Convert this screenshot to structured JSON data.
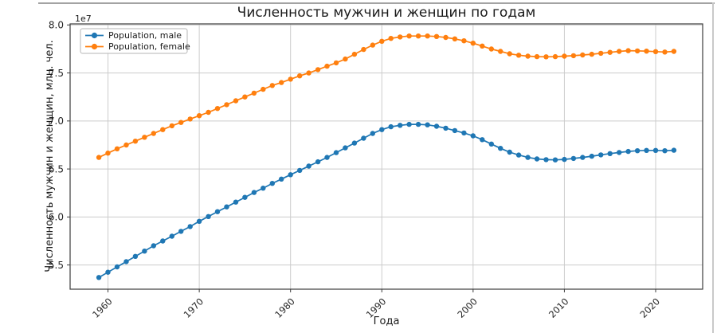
{
  "figure": {
    "background": "#ffffff",
    "frame_border_color": "#3c3c3c",
    "grid_color": "#cccccc",
    "window_border_top_color": "#a3a3a3",
    "window_border_right_color": "#c9c9c9"
  },
  "chart_data": {
    "type": "line",
    "title": "Численность мужчин и женщин по годам",
    "xlabel": "Года",
    "ylabel": "Численность мужчин и женщин, млн. чел.",
    "offset_label": "1e7",
    "grid": true,
    "legend_position": "upper left",
    "x": [
      1959,
      1960,
      1961,
      1962,
      1963,
      1964,
      1965,
      1966,
      1967,
      1968,
      1969,
      1970,
      1971,
      1972,
      1973,
      1974,
      1975,
      1976,
      1977,
      1978,
      1979,
      1980,
      1981,
      1982,
      1983,
      1984,
      1985,
      1986,
      1987,
      1988,
      1989,
      1990,
      1991,
      1992,
      1993,
      1994,
      1995,
      1996,
      1997,
      1998,
      1999,
      2000,
      2001,
      2002,
      2003,
      2004,
      2005,
      2006,
      2007,
      2008,
      2009,
      2010,
      2011,
      2012,
      2013,
      2014,
      2015,
      2016,
      2017,
      2018,
      2019,
      2020,
      2021,
      2022
    ],
    "series": [
      {
        "name": "Population, male",
        "color": "#1f77b4",
        "values_millions": [
          53.7,
          54.25,
          54.8,
          55.35,
          55.9,
          56.45,
          57.0,
          57.5,
          58.0,
          58.5,
          59.0,
          59.55,
          60.05,
          60.55,
          61.05,
          61.55,
          62.05,
          62.55,
          63.0,
          63.5,
          63.95,
          64.4,
          64.85,
          65.3,
          65.75,
          66.2,
          66.7,
          67.2,
          67.7,
          68.2,
          68.7,
          69.1,
          69.4,
          69.55,
          69.65,
          69.65,
          69.6,
          69.45,
          69.25,
          69.0,
          68.75,
          68.45,
          68.05,
          67.6,
          67.15,
          66.75,
          66.45,
          66.2,
          66.05,
          65.97,
          65.95,
          66.0,
          66.1,
          66.2,
          66.33,
          66.47,
          66.6,
          66.72,
          66.83,
          66.9,
          66.93,
          66.93,
          66.9,
          66.95
        ]
      },
      {
        "name": "Population, female",
        "color": "#ff7f0e",
        "values_millions": [
          66.2,
          66.65,
          67.1,
          67.5,
          67.9,
          68.3,
          68.7,
          69.1,
          69.5,
          69.85,
          70.2,
          70.55,
          70.9,
          71.3,
          71.7,
          72.1,
          72.5,
          72.9,
          73.3,
          73.7,
          74.0,
          74.35,
          74.7,
          75.0,
          75.35,
          75.7,
          76.05,
          76.45,
          76.95,
          77.45,
          77.9,
          78.3,
          78.6,
          78.75,
          78.85,
          78.85,
          78.85,
          78.8,
          78.7,
          78.55,
          78.35,
          78.1,
          77.8,
          77.5,
          77.25,
          77.0,
          76.85,
          76.75,
          76.7,
          76.68,
          76.7,
          76.75,
          76.8,
          76.87,
          76.95,
          77.05,
          77.15,
          77.25,
          77.32,
          77.3,
          77.27,
          77.22,
          77.18,
          77.25
        ]
      }
    ],
    "xticks": [
      1960,
      1970,
      1980,
      1990,
      2000,
      2010,
      2020
    ],
    "yticks_e7": [
      5.5,
      6.0,
      6.5,
      7.0,
      7.5,
      8.0
    ],
    "xlim": [
      1955.85,
      2025.15
    ],
    "ylim_e7": [
      5.248,
      8.011
    ]
  }
}
